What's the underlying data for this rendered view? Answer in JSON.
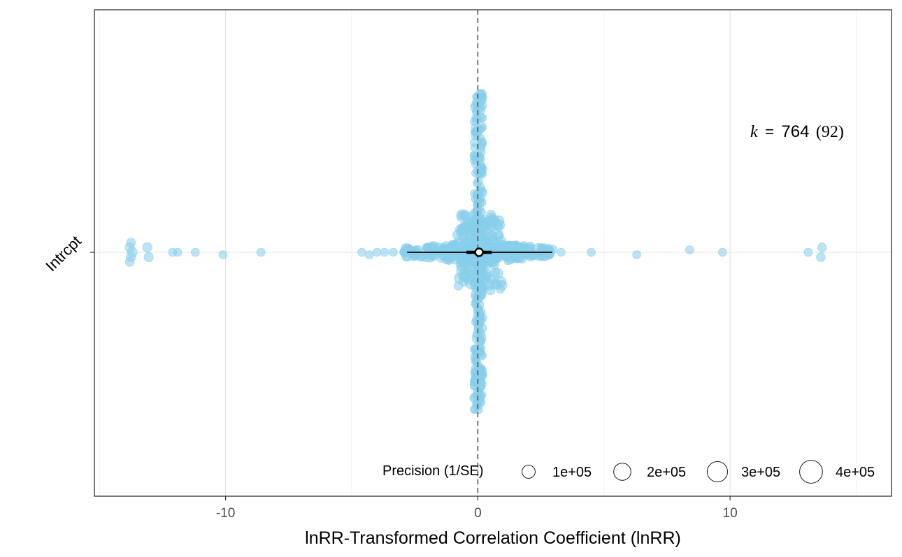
{
  "chart_data": {
    "type": "scatter",
    "subtype": "orchard-plot",
    "xlabel": "lnRR-Transformed Correlation Coefficient (lnRR)",
    "ylabel": "",
    "xlim": [
      -15.2,
      16.4
    ],
    "x_ticks": [
      -10,
      0,
      10
    ],
    "x_tick_labels": [
      "-10",
      "0",
      "10"
    ],
    "categories": [
      "Intrcpt"
    ],
    "reference_line_x": 0,
    "grid": true,
    "point_color": "#87ceeb",
    "estimate": {
      "mean": 0.05,
      "ci_lower": -0.45,
      "ci_upper": 0.55,
      "pi_lower": -2.8,
      "pi_upper": 2.95
    },
    "annotation": {
      "k_symbol": "k",
      "equals": "=",
      "k_value": "764",
      "k_studies": "(92)"
    },
    "legend": {
      "title": "Precision (1/SE)",
      "placement": "bottom-right",
      "entries": [
        {
          "label": "1e+05",
          "precision": 100000
        },
        {
          "label": "2e+05",
          "precision": 200000
        },
        {
          "label": "3e+05",
          "precision": 300000
        },
        {
          "label": "4e+05",
          "precision": 400000
        }
      ]
    },
    "outlier_points": [
      {
        "x": -13.8,
        "precision": 25000,
        "jitter": -0.02
      },
      {
        "x": -13.75,
        "precision": 25000,
        "jitter": 0.02
      },
      {
        "x": -13.7,
        "precision": 30000,
        "jitter": 0.0
      },
      {
        "x": -13.8,
        "precision": 20000,
        "jitter": 0.04
      },
      {
        "x": -13.75,
        "precision": 20000,
        "jitter": -0.04
      },
      {
        "x": -13.1,
        "precision": 25000,
        "jitter": -0.02
      },
      {
        "x": -13.05,
        "precision": 25000,
        "jitter": 0.02
      },
      {
        "x": -12.1,
        "precision": 15000,
        "jitter": 0.0
      },
      {
        "x": -11.9,
        "precision": 15000,
        "jitter": 0.0
      },
      {
        "x": -11.2,
        "precision": 15000,
        "jitter": 0.0
      },
      {
        "x": -10.1,
        "precision": 15000,
        "jitter": 0.01
      },
      {
        "x": -8.6,
        "precision": 15000,
        "jitter": 0.0
      },
      {
        "x": -4.6,
        "precision": 15000,
        "jitter": 0.0
      },
      {
        "x": -4.3,
        "precision": 15000,
        "jitter": 0.01
      },
      {
        "x": -4.0,
        "precision": 15000,
        "jitter": 0.0
      },
      {
        "x": -3.7,
        "precision": 15000,
        "jitter": 0.0
      },
      {
        "x": -3.35,
        "precision": 15000,
        "jitter": 0.0
      },
      {
        "x": 3.3,
        "precision": 15000,
        "jitter": 0.0
      },
      {
        "x": 4.5,
        "precision": 15000,
        "jitter": 0.0
      },
      {
        "x": 6.3,
        "precision": 15000,
        "jitter": 0.01
      },
      {
        "x": 8.4,
        "precision": 15000,
        "jitter": -0.01
      },
      {
        "x": 9.7,
        "precision": 15000,
        "jitter": 0.0
      },
      {
        "x": 13.1,
        "precision": 15000,
        "jitter": 0.0
      },
      {
        "x": 13.6,
        "precision": 20000,
        "jitter": 0.02
      },
      {
        "x": 13.65,
        "precision": 20000,
        "jitter": -0.02
      }
    ],
    "large_points": [
      {
        "x": -0.45,
        "precision": 240000,
        "jitter": 0.08
      },
      {
        "x": -0.45,
        "precision": 240000,
        "jitter": -0.08
      },
      {
        "x": -0.2,
        "precision": 140000,
        "jitter": 0.12
      },
      {
        "x": 0.3,
        "precision": 110000,
        "jitter": -0.12
      },
      {
        "x": 0.05,
        "precision": 90000,
        "jitter": 0.35
      },
      {
        "x": 0.1,
        "precision": 80000,
        "jitter": 0.5
      }
    ]
  }
}
